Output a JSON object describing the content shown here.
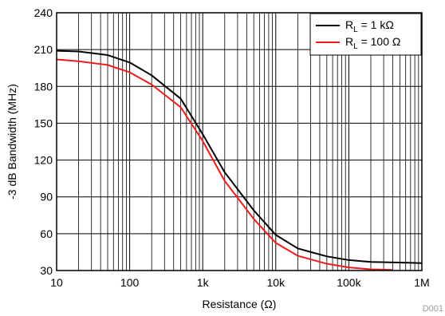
{
  "chart_data": {
    "type": "line",
    "xscale": "log",
    "xlim": [
      10,
      1000000
    ],
    "ylim": [
      30,
      240
    ],
    "xlabel": "Resistance (Ω)",
    "ylabel": "-3 dB Bandwidth (MHz)",
    "x_ticks": [
      10,
      100,
      1000,
      10000,
      100000,
      1000000
    ],
    "x_tick_labels": [
      "10",
      "100",
      "1k",
      "10k",
      "100k",
      "1M"
    ],
    "y_ticks": [
      30,
      60,
      90,
      120,
      150,
      180,
      210,
      240
    ],
    "y_tick_labels": [
      "30",
      "60",
      "90",
      "120",
      "150",
      "180",
      "210",
      "240"
    ],
    "grid": true,
    "legend_position": "top-right",
    "tag": "D001",
    "series": [
      {
        "legend_main": "R",
        "legend_sub": "L",
        "legend_rest": " = 1 kΩ",
        "color": "#000000",
        "x": [
          10,
          20,
          50,
          100,
          200,
          500,
          1000,
          2000,
          5000,
          10000,
          20000,
          50000,
          100000,
          200000,
          500000,
          1000000
        ],
        "y": [
          209,
          208.5,
          205.5,
          199.5,
          189,
          170,
          141,
          110,
          79,
          59,
          48,
          41.5,
          38.5,
          37,
          36.5,
          36
        ]
      },
      {
        "legend_main": "R",
        "legend_sub": "L",
        "legend_rest": " = 100 Ω",
        "color": "#ee1c1c",
        "x": [
          10,
          20,
          50,
          100,
          200,
          500,
          1000,
          2000,
          5000,
          10000,
          20000,
          50000,
          100000,
          200000,
          400000
        ],
        "y": [
          202,
          200.5,
          197.5,
          191.5,
          181.5,
          163,
          135.5,
          103,
          72,
          52.5,
          42,
          35.5,
          32.5,
          31,
          30.5
        ]
      }
    ]
  }
}
